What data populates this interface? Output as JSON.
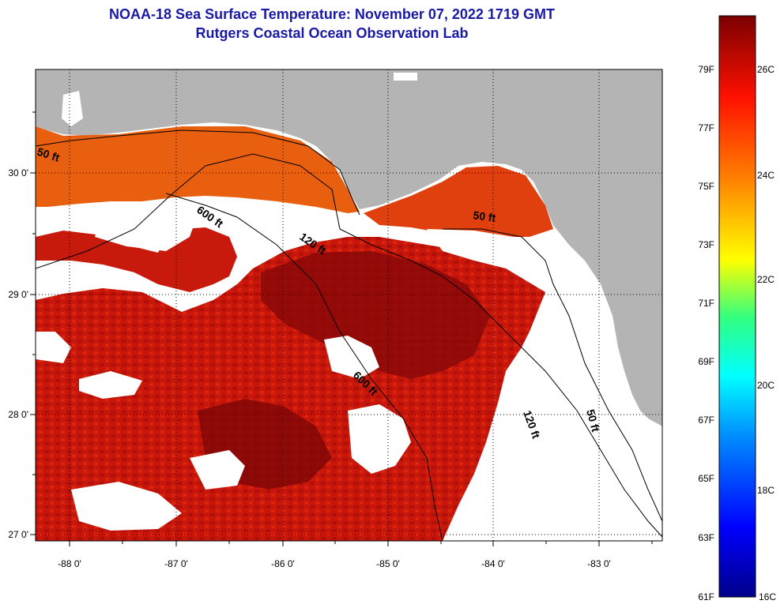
{
  "title_line1": "NOAA-18 Sea Surface Temperature:  November 07, 2022 1719 GMT",
  "title_line2": "Rutgers Coastal Ocean Observation Lab",
  "map": {
    "lon_labels": [
      "-88 0'",
      "-87 0'",
      "-86 0'",
      "-85 0'",
      "-84 0'",
      "-83 0'"
    ],
    "lat_labels": [
      "30 0'",
      "29 0'",
      "28 0'",
      "27 0'"
    ],
    "contour_labels": [
      "50 ft",
      "600 ft",
      "120 ft",
      "50 ft",
      "600 ft",
      "120 ft",
      "50 ft"
    ],
    "colors": {
      "land": "#b4b4b4",
      "cloud": "#ffffff",
      "sst_warm": "#d01a0a",
      "sst_hot": "#8a0505",
      "sst_mid": "#e86a12"
    }
  },
  "colorbar": {
    "f_labels": [
      "79F",
      "77F",
      "75F",
      "73F",
      "71F",
      "69F",
      "67F",
      "65F",
      "63F",
      "61F"
    ],
    "c_labels": [
      "26C",
      "24C",
      "22C",
      "20C",
      "18C",
      "16C"
    ],
    "range_f": [
      61,
      81
    ],
    "colors": [
      "#00008b",
      "#0000ff",
      "#0080ff",
      "#00ffff",
      "#00ff80",
      "#ffff00",
      "#ff8000",
      "#ff0000",
      "#800000"
    ]
  }
}
